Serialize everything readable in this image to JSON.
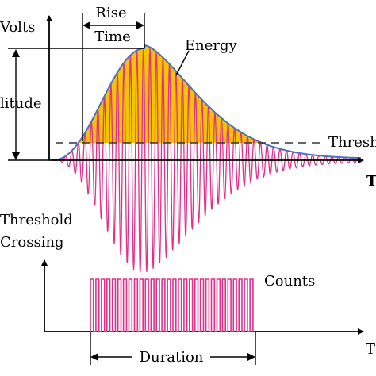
{
  "labels": {
    "volts": "Volts",
    "amplitude": "litude",
    "rise_line1": "Rise",
    "rise_line2": "Time",
    "energy": "Energy",
    "threshold": "Thresh",
    "time_top": "T",
    "threshold_crossing_1": "Threshold",
    "threshold_crossing_2": "Crossing",
    "counts": "Counts",
    "duration": "Duration",
    "time_bottom": "T"
  },
  "colors": {
    "energy_fill": "#f5c400",
    "waveform": "#e0308a",
    "envelope": "#4f6fbf",
    "threshold_line": "#333333",
    "axis": "#000000"
  },
  "counts_pulses": 30
}
